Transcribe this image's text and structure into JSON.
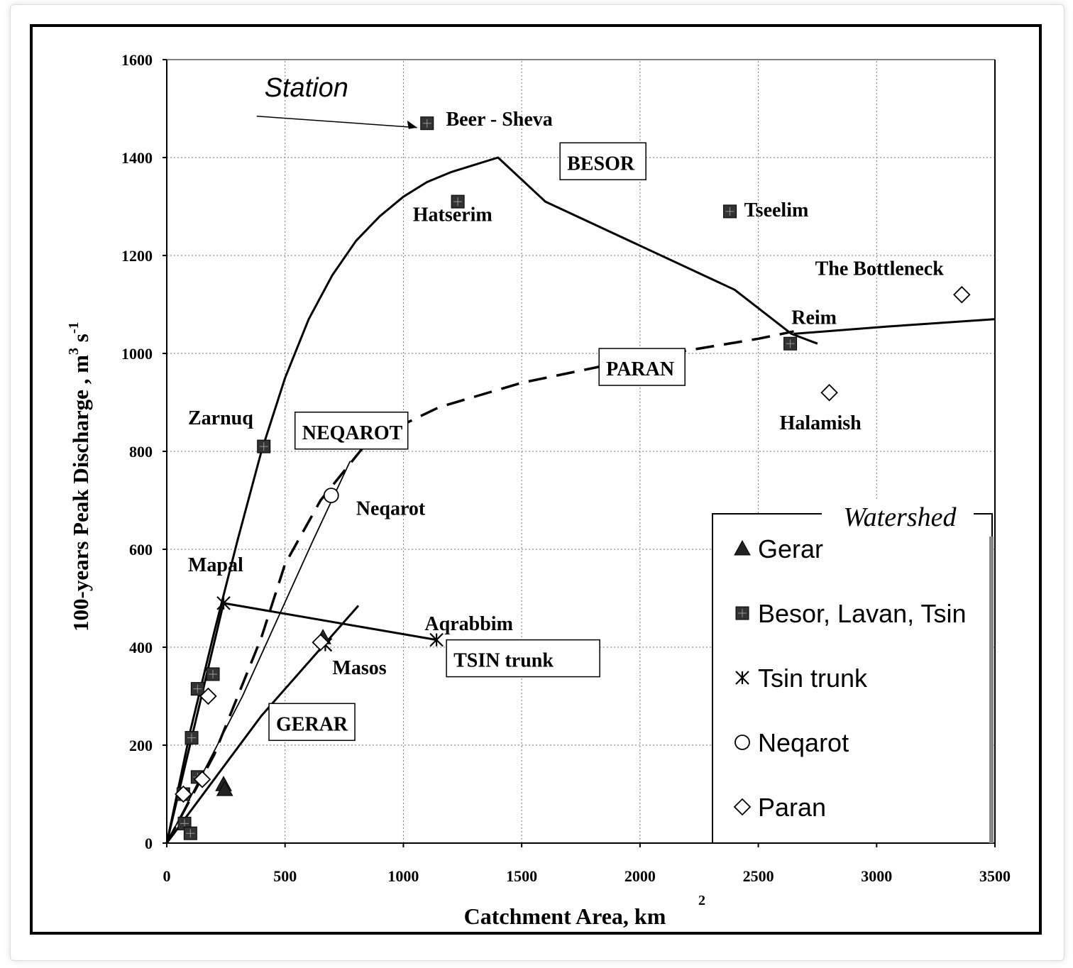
{
  "chart_data": {
    "type": "scatter",
    "title": "",
    "xlabel": "Catchment Area, km",
    "xlabel_sup": "2",
    "ylabel": "100-years Peak Discharge , m",
    "ylabel_sup1": "3",
    "ylabel_mid": " s",
    "ylabel_sup2": "-1",
    "xlim": [
      0,
      3500
    ],
    "ylim": [
      0,
      1600
    ],
    "xticks": [
      0,
      500,
      1000,
      1500,
      2000,
      2500,
      3000,
      3500
    ],
    "yticks": [
      0,
      200,
      400,
      600,
      800,
      1000,
      1200,
      1400,
      1600
    ],
    "xtick_labels": [
      "0",
      "500",
      "1000",
      "1500",
      "2000",
      "2500",
      "3000",
      "3500"
    ],
    "ytick_labels": [
      "0",
      "200",
      "400",
      "600",
      "800",
      "1000",
      "1200",
      "1400",
      "1600"
    ],
    "grid": true,
    "legend_title": "Watershed",
    "legend": [
      {
        "name": "Gerar",
        "marker": "triangle"
      },
      {
        "name": "Besor, Lavan, Tsin",
        "marker": "square"
      },
      {
        "name": "Tsin trunk",
        "marker": "asterisk"
      },
      {
        "name": "Neqarot",
        "marker": "circle"
      },
      {
        "name": "Paran",
        "marker": "diamond"
      }
    ],
    "series": [
      {
        "name": "Gerar",
        "marker": "triangle",
        "points": [
          [
            240,
            120
          ],
          [
            660,
            420
          ],
          [
            245,
            110
          ]
        ]
      },
      {
        "name": "Besor, Lavan, Tsin",
        "marker": "square",
        "points": [
          [
            1100,
            1470
          ],
          [
            1230,
            1310
          ],
          [
            2380,
            1290
          ],
          [
            2635,
            1020
          ],
          [
            410,
            810
          ],
          [
            195,
            345
          ],
          [
            130,
            315
          ],
          [
            105,
            215
          ],
          [
            130,
            135
          ],
          [
            70,
            100
          ],
          [
            75,
            40
          ],
          [
            100,
            20
          ]
        ]
      },
      {
        "name": "Tsin trunk",
        "marker": "asterisk",
        "points": [
          [
            240,
            490
          ],
          [
            1140,
            415
          ],
          [
            670,
            405
          ]
        ]
      },
      {
        "name": "Neqarot",
        "marker": "circle",
        "points": [
          [
            695,
            710
          ]
        ]
      },
      {
        "name": "Paran",
        "marker": "diamond",
        "points": [
          [
            3360,
            1120
          ],
          [
            2800,
            920
          ],
          [
            175,
            300
          ],
          [
            150,
            130
          ],
          [
            70,
            100
          ],
          [
            650,
            410
          ]
        ]
      }
    ],
    "curves": [
      {
        "name": "BESOR",
        "style": "solid",
        "points": [
          [
            0,
            0
          ],
          [
            100,
            230
          ],
          [
            200,
            430
          ],
          [
            300,
            620
          ],
          [
            400,
            800
          ],
          [
            500,
            950
          ],
          [
            600,
            1070
          ],
          [
            700,
            1160
          ],
          [
            800,
            1230
          ],
          [
            900,
            1280
          ],
          [
            1000,
            1320
          ],
          [
            1100,
            1350
          ],
          [
            1200,
            1370
          ],
          [
            1300,
            1385
          ],
          [
            1400,
            1400
          ],
          [
            1600,
            1310
          ],
          [
            2000,
            1220
          ],
          [
            2400,
            1130
          ],
          [
            2640,
            1040
          ],
          [
            2750,
            1020
          ]
        ]
      },
      {
        "name": "PARAN",
        "style": "dashed",
        "points": [
          [
            0,
            0
          ],
          [
            200,
            180
          ],
          [
            400,
            420
          ],
          [
            500,
            570
          ],
          [
            650,
            700
          ],
          [
            850,
            820
          ],
          [
            1150,
            890
          ],
          [
            1500,
            940
          ],
          [
            2000,
            990
          ],
          [
            2500,
            1030
          ],
          [
            2650,
            1045
          ]
        ]
      },
      {
        "name": "Reim line",
        "style": "solid",
        "points": [
          [
            2650,
            1040
          ],
          [
            3050,
            1055
          ],
          [
            3500,
            1070
          ]
        ]
      },
      {
        "name": "NEQAROT",
        "style": "solid",
        "points": [
          [
            0,
            0
          ],
          [
            320,
            300
          ],
          [
            620,
            620
          ],
          [
            775,
            780
          ]
        ]
      },
      {
        "name": "GERAR",
        "style": "solid",
        "points": [
          [
            0,
            0
          ],
          [
            400,
            260
          ],
          [
            810,
            485
          ]
        ]
      },
      {
        "name": "TSIN trunk",
        "style": "solid",
        "points": [
          [
            240,
            490
          ],
          [
            1140,
            415
          ]
        ]
      },
      {
        "name": "Mapal-steep",
        "style": "solid",
        "points": [
          [
            0,
            0
          ],
          [
            240,
            490
          ]
        ]
      }
    ],
    "annotations": [
      {
        "text": "Station",
        "x": 590,
        "y": 1525
      },
      {
        "text": "Beer - Sheva",
        "x": 1180,
        "y": 1465
      },
      {
        "text": "Hatserim",
        "x": 1040,
        "y": 1270
      },
      {
        "text": "Tseelim",
        "x": 2440,
        "y": 1280
      },
      {
        "text": "The Bottleneck",
        "x": 2740,
        "y": 1160
      },
      {
        "text": "Reim",
        "x": 2640,
        "y": 1060
      },
      {
        "text": "Halamish",
        "x": 2590,
        "y": 845
      },
      {
        "text": "Zarnuq",
        "x": 90,
        "y": 855
      },
      {
        "text": "Neqarot",
        "x": 800,
        "y": 670
      },
      {
        "text": "Mapal",
        "x": 90,
        "y": 555
      },
      {
        "text": "Aqrabbim",
        "x": 1090,
        "y": 435
      },
      {
        "text": "Masos",
        "x": 700,
        "y": 345
      }
    ],
    "boxed_labels": [
      {
        "text": "BESOR",
        "x": 1680,
        "y": 1375
      },
      {
        "text": "PARAN",
        "x": 1845,
        "y": 955
      },
      {
        "text": "NEQAROT",
        "x": 560,
        "y": 825
      },
      {
        "text": "TSIN trunk",
        "x": 1200,
        "y": 360
      },
      {
        "text": "GERAR",
        "x": 450,
        "y": 230
      }
    ]
  }
}
